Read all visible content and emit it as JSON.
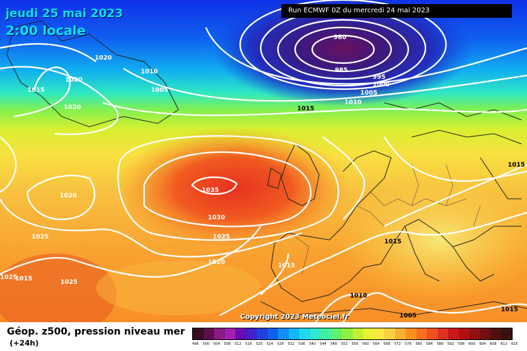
{
  "header": {
    "date_line": "jeudi 25 mai 2023",
    "time_line": "2:00 locale",
    "run_info": "Run ECMWF 0Z du mercredi 24 mai 2023"
  },
  "copyright": "Copyright 2023 Meteociel.fr",
  "isobar_labels": [
    "1020",
    "1010",
    "1005",
    "1015",
    "1020",
    "1020",
    "980",
    "985",
    "995",
    "1000",
    "1005",
    "1010",
    "1015",
    "1015",
    "1035",
    "1030",
    "1025",
    "1025",
    "1020",
    "1025",
    "1015",
    "1015",
    "1020",
    "1025",
    "1010",
    "1005",
    "1015",
    "1015"
  ],
  "legend": {
    "title": "Géop. z500, pression niveau mer",
    "subtitle": "(+24h)",
    "scale_values": [
      "496",
      "500",
      "504",
      "508",
      "512",
      "516",
      "520",
      "524",
      "528",
      "532",
      "536",
      "540",
      "544",
      "548",
      "552",
      "556",
      "560",
      "564",
      "568",
      "572",
      "576",
      "580",
      "584",
      "588",
      "592",
      "596",
      "600",
      "604",
      "608",
      "612",
      "616"
    ],
    "scale_colors": [
      "#3a0a26",
      "#5a0f4a",
      "#8a1a8a",
      "#a020b0",
      "#6a0ab0",
      "#4020c8",
      "#2040e0",
      "#1060f0",
      "#1090f8",
      "#10b8f8",
      "#20d8f0",
      "#30e8d0",
      "#40f0a0",
      "#60f070",
      "#90f040",
      "#c0f030",
      "#e8f030",
      "#f8e840",
      "#f8d040",
      "#f8b030",
      "#f89020",
      "#f87020",
      "#f05020",
      "#e03020",
      "#c81818",
      "#b01010",
      "#901010",
      "#701010",
      "#501010",
      "#381010"
    ]
  }
}
